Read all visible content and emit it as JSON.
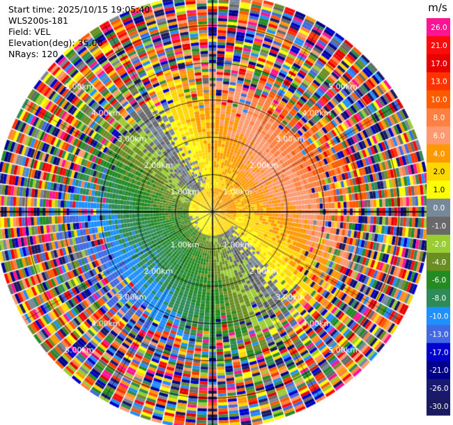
{
  "header": {
    "start_time": "Start time: 2025/10/15 19:05:40",
    "instrument": "WLS200s-181",
    "field": "Field: VEL",
    "elevation": "Elevation(deg): 35.00",
    "nrays": "NRays: 120"
  },
  "chart_data": {
    "type": "heatmap",
    "subtype": "polar PPI scan",
    "field": "VEL",
    "elevation_deg": 35.0,
    "n_rays": 120,
    "range_rings_km": [
      1.0,
      2.0,
      3.0,
      4.0,
      5.0
    ],
    "range_ring_labels": [
      "1.00km",
      "2.00km",
      "3.00km",
      "4.00km",
      "5.00km"
    ],
    "max_range_km": 5.8,
    "grid": true,
    "colorbar": {
      "unit": "m/s",
      "tick_labels": [
        "26.0",
        "21.0",
        "17.0",
        "13.0",
        "10.0",
        "8.0",
        "6.0",
        "4.0",
        "2.0",
        "1.0",
        "0.0",
        "-1.0",
        "-2.0",
        "-4.0",
        "-6.0",
        "-8.0",
        "-10.0",
        "-13.0",
        "-17.0",
        "-21.0",
        "-26.0",
        "-30.0"
      ],
      "colors": [
        "#ff1493",
        "#ff0a0a",
        "#e60000",
        "#ff3300",
        "#ff5a00",
        "#ff8040",
        "#ff9a70",
        "#ff9900",
        "#ffd700",
        "#ffff00",
        "#778899",
        "#696969",
        "#9acd32",
        "#6b8e23",
        "#228b22",
        "#2e8b57",
        "#1e90ff",
        "#4169e1",
        "#0000cd",
        "#00008b",
        "#191970",
        "#1a1a60"
      ]
    }
  }
}
